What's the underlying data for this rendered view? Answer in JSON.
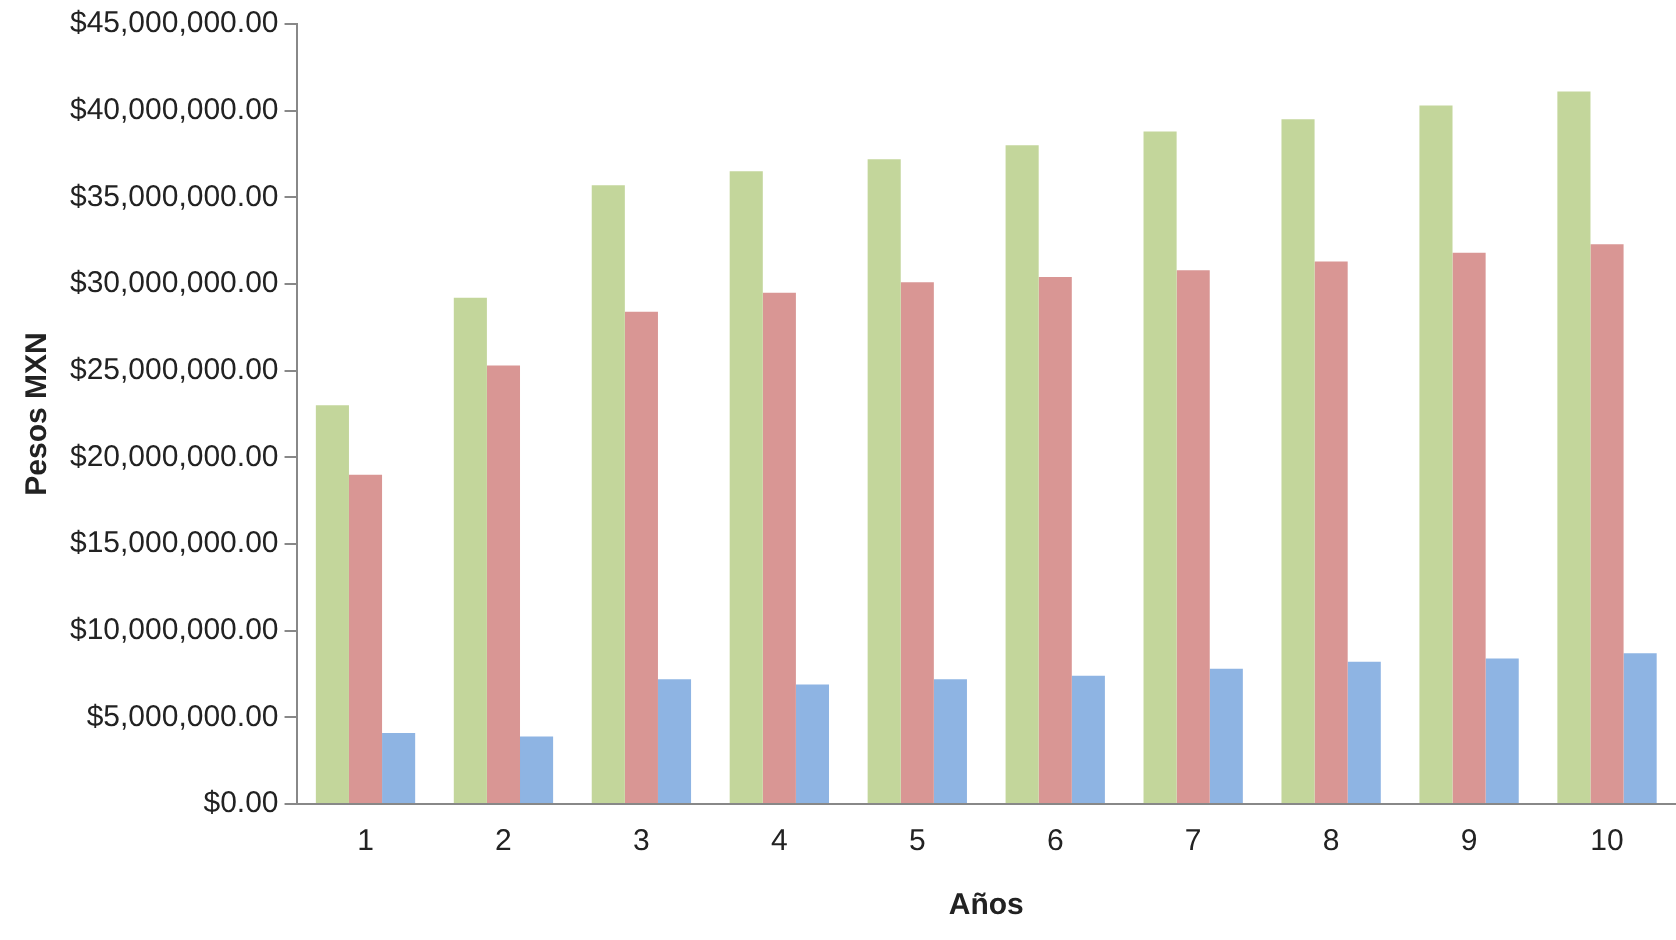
{
  "chart_data": {
    "type": "bar",
    "xlabel": "Años",
    "ylabel": "Pesos MXN",
    "categories": [
      "1",
      "2",
      "3",
      "4",
      "5",
      "6",
      "7",
      "8",
      "9",
      "10"
    ],
    "series": [
      {
        "color": "#c3d69b",
        "values": [
          23000000,
          29200000,
          35700000,
          36500000,
          37200000,
          38000000,
          38800000,
          39500000,
          40300000,
          41100000
        ]
      },
      {
        "color": "#d99694",
        "values": [
          19000000,
          25300000,
          28400000,
          29500000,
          30100000,
          30400000,
          30800000,
          31300000,
          31800000,
          32300000
        ]
      },
      {
        "color": "#8eb4e3",
        "values": [
          4100000,
          3900000,
          7200000,
          6900000,
          7200000,
          7400000,
          7800000,
          8200000,
          8400000,
          8700000
        ]
      }
    ],
    "ylim": [
      0,
      45000000
    ],
    "yticks": [
      {
        "value": 0,
        "label": "$0.00"
      },
      {
        "value": 5000000,
        "label": "$5,000,000.00"
      },
      {
        "value": 10000000,
        "label": "$10,000,000.00"
      },
      {
        "value": 15000000,
        "label": "$15,000,000.00"
      },
      {
        "value": 20000000,
        "label": "$20,000,000.00"
      },
      {
        "value": 25000000,
        "label": "$25,000,000.00"
      },
      {
        "value": 30000000,
        "label": "$30,000,000.00"
      },
      {
        "value": 35000000,
        "label": "$35,000,000.00"
      },
      {
        "value": 40000000,
        "label": "$40,000,000.00"
      },
      {
        "value": 45000000,
        "label": "$45,000,000.00"
      }
    ],
    "grid": false,
    "legend": false
  }
}
